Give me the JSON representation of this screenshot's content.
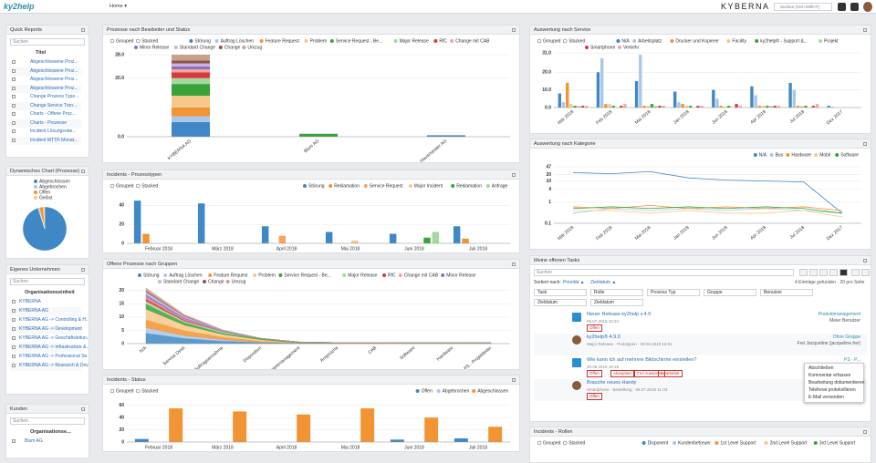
{
  "ui": {
    "topbar": {
      "logo": "ky2help",
      "menu": "Home ▾",
      "brand": "KYBERNA",
      "search": "Suchen (Ctrl+Shift+F)"
    },
    "quick_reports": {
      "title": "Quick Reports",
      "search": "Suchen",
      "column": "Titel",
      "rows": [
        "Abgeschlossene Proz...",
        "Abgeschlossene Proz...",
        "Abgeschlossene Proz...",
        "Abgeschlossene Proz...",
        "Change Prozess Type...",
        "Change Service Tran...",
        "Charts - Offene Proz...",
        "Charts - Prozesse",
        "Incident Lösungsrate...",
        "Incident MTTR Monat..."
      ]
    },
    "own_company": {
      "title": "Eigenes Unternehmen",
      "search": "Suchen",
      "column": "Organisationseinheit",
      "rows": [
        "KYBERNA",
        "KYBERNA AG",
        "KYBERNA AG -> Controlling & H...",
        "KYBERNA AG -> Development",
        "KYBERNA AG -> Geschäftsleitun...",
        "KYBERNA AG -> Infrastructure &...",
        "KYBERNA AG -> Professional Se...",
        "KYBERNA AG -> Research & Dev..."
      ]
    },
    "customers": {
      "title": "Kunden",
      "search": "Suchen",
      "column": "Organisationse...",
      "rows": [
        "Blum AG"
      ]
    },
    "tasks": {
      "title": "Meine offenen Tasks",
      "search": "Suchen",
      "sort_label": "Sortiert nach:",
      "sort": [
        "Priorität ▲",
        "Zieldatum ▲"
      ],
      "count": "4 Einträge gefunden · 20 pro Seite",
      "filters": [
        "Task",
        "Rolle",
        "Prozess Typ",
        "Gruppe",
        "Benutzer",
        "Zieldatum",
        "Zieldatum"
      ],
      "items": [
        {
          "title": "Neuer Release ky2help v.4.9",
          "meta": "05.07.2018 16:34",
          "tags": [
            "Offen"
          ],
          "right": [
            "Produktmanagement",
            "Meier Benutzer"
          ]
        },
        {
          "title": "ky2help® 4.9.0",
          "meta": "Major Release · Prototypen · 09.04.2018 16:01",
          "tags": [],
          "right": [
            "Ohne Gruppe",
            "Frei Jacqueline (jacqueline.frei)"
          ]
        },
        {
          "title": "Wie kann ich auf mehrere Bildschirme einstellen?",
          "meta": "20.06.2018 15:19",
          "tags": [
            "Offen",
            "Akzeptiert",
            "Frei zuweisen",
            "Bearbeitet"
          ],
          "right": [
            "PS - P...",
            "Ohne..."
          ]
        },
        {
          "title": "Brauche neues Handy",
          "meta": "Smartphone · Bestellung · 05.07.2018 11:33",
          "tags": [
            "Offen"
          ],
          "right": [
            "Frei Jacqueline (jacqu...",
            "Bestellung genehmigen"
          ]
        }
      ],
      "menu": [
        "Abschließen",
        "Kommentar erfassen",
        "Bearbeitung dokumentieren",
        "Telefonat protokollieren",
        "E-Mail versenden"
      ]
    }
  },
  "chart_data": [
    {
      "type": "bar",
      "stacked": true,
      "title": "Prozesse nach Bearbeiter und Status",
      "options": [
        "Grouped",
        "Stacked"
      ],
      "categories": [
        "KYBERNA AG",
        "Blum AG",
        "Hausmeister AG"
      ],
      "ylim": [
        0,
        28
      ],
      "yticks": [
        {
          "value": 0,
          "label": "0.0"
        },
        {
          "value": 20,
          "label": "20.0"
        },
        {
          "value": 28,
          "label": "28.0"
        }
      ],
      "series": [
        {
          "name": "Störung",
          "color": "#3f88c5",
          "values": [
            5,
            0,
            0.5
          ]
        },
        {
          "name": "Auftrag Löschen",
          "color": "#a9c8e8",
          "values": [
            2,
            0,
            0
          ]
        },
        {
          "name": "Feature Request",
          "color": "#f29433",
          "values": [
            3,
            0,
            0
          ]
        },
        {
          "name": "Problem",
          "color": "#f8c78a",
          "values": [
            4,
            0,
            0
          ]
        },
        {
          "name": "Service Request - Be...",
          "color": "#3aa23a",
          "values": [
            4,
            1,
            0
          ]
        },
        {
          "name": "Major Release",
          "color": "#a3d9a0",
          "values": [
            2,
            0,
            0
          ]
        },
        {
          "name": "RfC",
          "color": "#d93a3a",
          "values": [
            2,
            0,
            0
          ]
        },
        {
          "name": "Change mit CAB",
          "color": "#f4a4a4",
          "values": [
            1,
            0,
            0
          ]
        },
        {
          "name": "Minor Release",
          "color": "#8e6fbf",
          "values": [
            1,
            0,
            0
          ]
        },
        {
          "name": "Standard Change",
          "color": "#c5b3e0",
          "values": [
            1,
            0,
            0
          ]
        },
        {
          "name": "Change",
          "color": "#8c564b",
          "values": [
            1,
            0,
            0
          ]
        },
        {
          "name": "Umzug",
          "color": "#c9a08f",
          "values": [
            2,
            0,
            0
          ]
        }
      ]
    },
    {
      "type": "bar",
      "title": "Incidents - Prozesstypen",
      "options": [
        "Grouped",
        "Stacked"
      ],
      "categories": [
        "Februar 2018",
        "März 2018",
        "April 2018",
        "Mai 2018",
        "Juni 2018",
        "Juli 2018"
      ],
      "ylim": [
        0,
        48
      ],
      "yticks": [
        0,
        20,
        40
      ],
      "series": [
        {
          "name": "Störung",
          "color": "#3f88c5",
          "values": [
            45,
            42,
            18,
            12,
            10,
            18
          ]
        },
        {
          "name": "Reklamation",
          "color": "#f29433",
          "values": [
            10,
            0,
            0,
            0,
            0,
            5
          ]
        },
        {
          "name": "Service Request",
          "color": "#f6a55a",
          "values": [
            0,
            0,
            8,
            0,
            0,
            0
          ]
        },
        {
          "name": "Major Incident",
          "color": "#f8c78a",
          "values": [
            0,
            0,
            0,
            3,
            0,
            0
          ]
        },
        {
          "name": "Reklamation",
          "color": "#3aa23a",
          "values": [
            0,
            0,
            0,
            0,
            6,
            0
          ]
        },
        {
          "name": "Anfrage",
          "color": "#a3d9a0",
          "values": [
            0,
            0,
            0,
            0,
            12,
            0
          ]
        }
      ]
    },
    {
      "type": "area",
      "title": "Offene Prozesse nach Gruppen",
      "categories": [
        "N/A",
        "Service Desk",
        "Auftragsannahme",
        "Disposition",
        "Projektmanagement",
        "Ansprüche",
        "CAB",
        "Software",
        "Hardware",
        "PS - Projektleiter"
      ],
      "ylim": [
        0,
        22
      ],
      "yticks": [
        0,
        5,
        10,
        15,
        20
      ],
      "series": [
        {
          "name": "Störung",
          "color": "#3f88c5",
          "values": [
            4,
            2,
            1,
            0.5,
            0.3,
            0.2,
            0.2,
            0.1,
            0.1,
            0.1
          ]
        },
        {
          "name": "Auftrag Löschen",
          "color": "#a9c8e8",
          "values": [
            2,
            1,
            0.5,
            0,
            0,
            0,
            0,
            0,
            0,
            0
          ]
        },
        {
          "name": "Feature Request",
          "color": "#f29433",
          "values": [
            3,
            2,
            1,
            0.5,
            0,
            0,
            0,
            0,
            0,
            0
          ]
        },
        {
          "name": "Problem",
          "color": "#f8c78a",
          "values": [
            4,
            2,
            1,
            0.5,
            0,
            0,
            0,
            0,
            0,
            0
          ]
        },
        {
          "name": "Service Request - Be...",
          "color": "#3aa23a",
          "values": [
            2,
            1,
            0.5,
            0.5,
            0.3,
            0.2,
            0.2,
            0.2,
            0.2,
            0.2
          ]
        },
        {
          "name": "Major Release",
          "color": "#a3d9a0",
          "values": [
            1,
            0.5,
            0.5,
            0,
            0,
            0,
            0,
            0,
            0,
            0
          ]
        },
        {
          "name": "RfC",
          "color": "#d93a3a",
          "values": [
            1,
            0.5,
            0,
            0,
            0,
            0,
            0,
            0,
            0,
            0
          ]
        },
        {
          "name": "Change mit CAB",
          "color": "#f4a4a4",
          "values": [
            0.5,
            0.3,
            0,
            0,
            0,
            0,
            0,
            0,
            0,
            0
          ]
        },
        {
          "name": "Minor Release",
          "color": "#8e6fbf",
          "values": [
            1,
            0.5,
            0.3,
            0,
            0,
            0,
            0,
            0,
            0,
            0
          ]
        },
        {
          "name": "Standard Change",
          "color": "#c5b3e0",
          "values": [
            1,
            0.5,
            0.2,
            0,
            0,
            0,
            0,
            0,
            0,
            0
          ]
        },
        {
          "name": "Change",
          "color": "#8c564b",
          "values": [
            0.5,
            0.2,
            0,
            0,
            0,
            0,
            0,
            0,
            0,
            0
          ]
        },
        {
          "name": "Umzug",
          "color": "#c9a08f",
          "values": [
            1,
            0.5,
            0.2,
            0,
            0,
            0,
            0,
            0,
            0,
            0
          ]
        }
      ]
    },
    {
      "type": "bar",
      "title": "Incidents - Status",
      "options": [
        "Grouped",
        "Stacked"
      ],
      "categories": [
        "Februar 2018",
        "März 2018",
        "April 2018",
        "Mai 2018",
        "Juni 2018",
        "Juli 2018"
      ],
      "ylim": [
        0,
        64
      ],
      "yticks": [
        0,
        20,
        40,
        60
      ],
      "series": [
        {
          "name": "Offen",
          "color": "#3f88c5",
          "values": [
            5,
            0,
            0,
            0,
            4,
            6
          ]
        },
        {
          "name": "Abgebrochen",
          "color": "#a9c8e8",
          "values": [
            0,
            0,
            0,
            0,
            0,
            0
          ]
        },
        {
          "name": "Abgeschlossen",
          "color": "#f29433",
          "values": [
            55,
            50,
            45,
            55,
            40,
            25
          ]
        }
      ]
    },
    {
      "type": "bar",
      "title": "Auswertung nach Service",
      "options": [
        "Grouped",
        "Stacked"
      ],
      "categories": [
        "Mär 2018",
        "Feb 2018",
        "Mai 2018",
        "Jan 2018",
        "Jun 2018",
        "Apr 2018",
        "Jul 2018",
        "Dez 2017"
      ],
      "ylim": [
        0,
        31
      ],
      "yticks": [
        {
          "value": 0,
          "label": "0.0"
        },
        {
          "value": 10,
          "label": "10.0"
        },
        {
          "value": 20,
          "label": "20.0"
        },
        {
          "value": 31,
          "label": "31.0"
        }
      ],
      "series": [
        {
          "name": "N/A",
          "color": "#3f88c5",
          "values": [
            8,
            20,
            15,
            9,
            10,
            12,
            14,
            1
          ]
        },
        {
          "name": "Arbeitsplatz",
          "color": "#a9c8e8",
          "values": [
            3,
            28,
            30,
            3,
            5,
            7,
            10,
            0.5
          ]
        },
        {
          "name": "Drucker und Kopierer",
          "color": "#f29433",
          "values": [
            14,
            2,
            1,
            2,
            1,
            1,
            1,
            0
          ]
        },
        {
          "name": "Facility",
          "color": "#f8c78a",
          "values": [
            2,
            2,
            1,
            1,
            0.5,
            1,
            1,
            0
          ]
        },
        {
          "name": "ky2help® - Support &...",
          "color": "#3aa23a",
          "values": [
            1,
            1,
            2,
            1,
            1,
            1,
            1,
            0
          ]
        },
        {
          "name": "Projekt",
          "color": "#a3d9a0",
          "values": [
            1,
            0,
            1,
            0,
            0,
            1,
            0,
            0
          ]
        },
        {
          "name": "Smartphone",
          "color": "#d93a3a",
          "values": [
            1,
            1,
            1,
            1,
            2,
            1,
            1,
            0
          ]
        },
        {
          "name": "Verkehr",
          "color": "#f4a4a4",
          "values": [
            1,
            2,
            1,
            1,
            1,
            1,
            2,
            0
          ]
        }
      ]
    },
    {
      "type": "line",
      "title": "Auswertung nach Kategorie",
      "log": true,
      "categories": [
        "Mär 2018",
        "Feb 2018",
        "Mai 2018",
        "Jan 2018",
        "Jun 2018",
        "Apr 2018",
        "Jul 2018",
        "Dez 2017"
      ],
      "ylim": [
        0.1,
        47
      ],
      "yticks": [
        0.1,
        1,
        4,
        10,
        20,
        47
      ],
      "series": [
        {
          "name": "N/A",
          "color": "#3f88c5",
          "values": [
            25,
            22,
            28,
            14,
            11,
            10,
            9,
            0.3
          ]
        },
        {
          "name": "Bus",
          "color": "#a9c8e8",
          "values": [
            0.3,
            0.5,
            0.4,
            0.5,
            0.4,
            0.5,
            0.4,
            0.3
          ]
        },
        {
          "name": "Hardware",
          "color": "#f29433",
          "values": [
            0.6,
            0.5,
            0.7,
            0.5,
            0.6,
            0.5,
            0.6,
            0.4
          ]
        },
        {
          "name": "Mobil",
          "color": "#f8c78a",
          "values": [
            0.4,
            0.4,
            0.3,
            0.4,
            0.3,
            0.3,
            0.4,
            0.2
          ]
        },
        {
          "name": "Software",
          "color": "#3aa23a",
          "values": [
            0.5,
            0.6,
            0.5,
            0.6,
            0.5,
            0.6,
            0.5,
            0.3
          ]
        }
      ]
    },
    {
      "type": "bar",
      "title": "Incidents - Rollen",
      "options": [
        "Grouped",
        "Stacked"
      ],
      "categories": [],
      "series": [
        {
          "name": "Disponent",
          "color": "#3f88c5",
          "values": []
        },
        {
          "name": "Kundenbetreuer",
          "color": "#a9c8e8",
          "values": []
        },
        {
          "name": "1st Level Support",
          "color": "#f29433",
          "values": []
        },
        {
          "name": "2nd Level Support",
          "color": "#f8c78a",
          "values": []
        },
        {
          "name": "3rd Level Support",
          "color": "#3aa23a",
          "values": []
        }
      ]
    },
    {
      "type": "pie",
      "title": "Dynamisches Chart (Prozesse)",
      "categories": [
        "Abgeschlossen",
        "Abgebrochen",
        "Offen",
        "Gelöst"
      ],
      "values": [
        95,
        1,
        3,
        1
      ],
      "colors": [
        "#3f88c5",
        "#a9c8e8",
        "#f29433",
        "#f8c78a"
      ]
    }
  ]
}
